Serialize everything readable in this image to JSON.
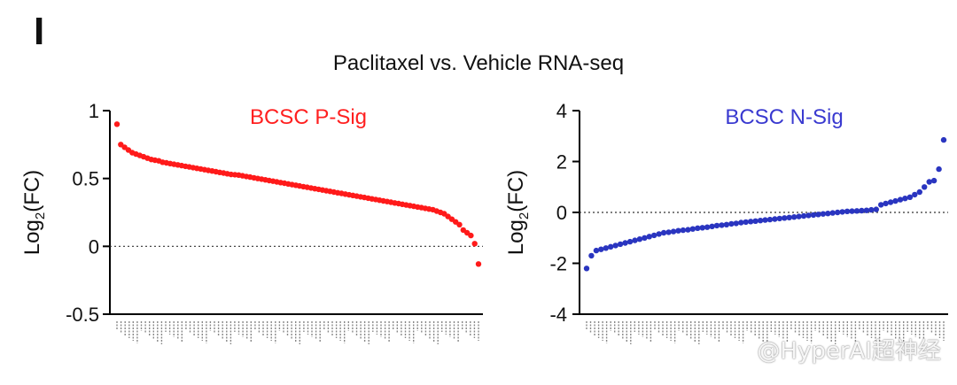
{
  "panel_letter": "I",
  "figure_title": "Paclitaxel vs. Vehicle  RNA-seq",
  "watermark": "@HyperAI超神经",
  "chart_data": [
    {
      "type": "scatter",
      "title": "BCSC P-Sig",
      "title_color": "#ff2020",
      "point_color": "#ff1a1a",
      "ylabel_main": "Log",
      "ylabel_sub": "2",
      "ylabel_tail": "(FC)",
      "ylim": [
        -0.5,
        1
      ],
      "yticks": [
        1,
        0.5,
        0,
        -0.5
      ],
      "ytick_labels": [
        "1",
        "0.5",
        "0",
        "-0.5"
      ],
      "reference_line": 0,
      "x_tick_labels": "unreadable gene names",
      "values": [
        0.9,
        0.75,
        0.73,
        0.71,
        0.69,
        0.68,
        0.67,
        0.66,
        0.65,
        0.64,
        0.635,
        0.63,
        0.62,
        0.615,
        0.61,
        0.605,
        0.6,
        0.595,
        0.59,
        0.585,
        0.58,
        0.575,
        0.57,
        0.565,
        0.56,
        0.555,
        0.55,
        0.545,
        0.54,
        0.535,
        0.53,
        0.528,
        0.525,
        0.52,
        0.515,
        0.51,
        0.505,
        0.5,
        0.495,
        0.49,
        0.485,
        0.48,
        0.475,
        0.47,
        0.465,
        0.46,
        0.455,
        0.45,
        0.445,
        0.44,
        0.435,
        0.43,
        0.425,
        0.42,
        0.415,
        0.41,
        0.405,
        0.4,
        0.395,
        0.39,
        0.385,
        0.38,
        0.375,
        0.37,
        0.365,
        0.36,
        0.355,
        0.35,
        0.345,
        0.34,
        0.335,
        0.33,
        0.325,
        0.32,
        0.315,
        0.31,
        0.305,
        0.3,
        0.295,
        0.29,
        0.285,
        0.28,
        0.275,
        0.27,
        0.26,
        0.25,
        0.24,
        0.22,
        0.2,
        0.18,
        0.16,
        0.12,
        0.1,
        0.08,
        0.02,
        -0.13
      ]
    },
    {
      "type": "scatter",
      "title": "BCSC N-Sig",
      "title_color": "#3a3ad0",
      "point_color": "#2a35c0",
      "ylabel_main": "Log",
      "ylabel_sub": "2",
      "ylabel_tail": "(FC)",
      "ylim": [
        -4,
        4
      ],
      "yticks": [
        4,
        2,
        0,
        -2,
        -4
      ],
      "ytick_labels": [
        "4",
        "2",
        "0",
        "-2",
        "-4"
      ],
      "reference_line": 0,
      "x_tick_labels": "unreadable gene names",
      "values": [
        -2.2,
        -1.7,
        -1.5,
        -1.45,
        -1.4,
        -1.35,
        -1.3,
        -1.25,
        -1.2,
        -1.15,
        -1.1,
        -1.05,
        -1.0,
        -0.95,
        -0.9,
        -0.85,
        -0.8,
        -0.78,
        -0.75,
        -0.72,
        -0.7,
        -0.68,
        -0.65,
        -0.62,
        -0.6,
        -0.58,
        -0.55,
        -0.52,
        -0.5,
        -0.48,
        -0.45,
        -0.43,
        -0.4,
        -0.38,
        -0.36,
        -0.34,
        -0.32,
        -0.3,
        -0.28,
        -0.26,
        -0.24,
        -0.22,
        -0.2,
        -0.18,
        -0.16,
        -0.14,
        -0.12,
        -0.1,
        -0.08,
        -0.06,
        -0.04,
        -0.02,
        0.0,
        0.02,
        0.04,
        0.05,
        0.06,
        0.07,
        0.08,
        0.1,
        0.12,
        0.3,
        0.35,
        0.4,
        0.45,
        0.5,
        0.55,
        0.6,
        0.7,
        0.8,
        1.0,
        1.2,
        1.25,
        1.7,
        2.85
      ]
    }
  ]
}
